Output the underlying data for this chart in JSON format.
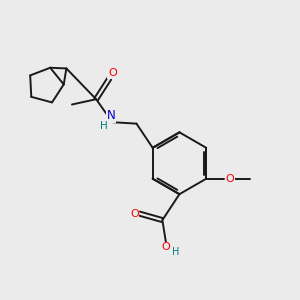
{
  "background_color": "#ebebeb",
  "bond_color": "#1a1a1a",
  "figsize": [
    3.0,
    3.0
  ],
  "dpi": 100,
  "atom_colors": {
    "O": "#ff0000",
    "N": "#0000cc",
    "H_on_N": "#008080",
    "H_on_O": "#008080",
    "C": "#1a1a1a"
  },
  "lw": 1.4,
  "font_size": 7.5
}
